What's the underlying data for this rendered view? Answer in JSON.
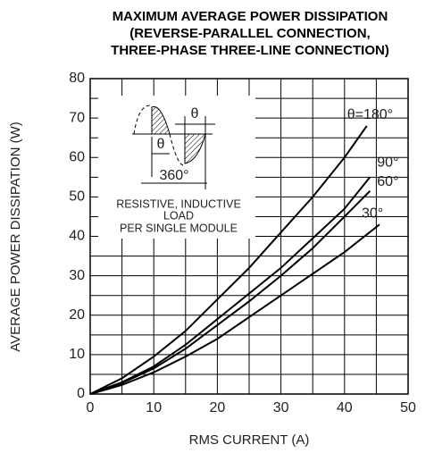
{
  "chart_data": {
    "type": "line",
    "title": [
      "MAXIMUM AVERAGE POWER DISSIPATION",
      "(REVERSE-PARALLEL CONNECTION,",
      "THREE-PHASE THREE-LINE CONNECTION)"
    ],
    "x_label": "RMS CURRENT (A)",
    "y_label": "AVERAGE POWER DISSIPATION (W)",
    "xlim": [
      0,
      50
    ],
    "xticks": [
      0,
      10,
      20,
      30,
      40,
      50
    ],
    "ylim": [
      0,
      80
    ],
    "yticks": [
      0,
      10,
      20,
      30,
      40,
      50,
      60,
      70,
      80
    ],
    "grid": true,
    "annotation": [
      "RESISTIVE, INDUCTIVE",
      "LOAD",
      "PER SINGLE MODULE"
    ],
    "waveform_labels": [
      "θ",
      "θ",
      "360°"
    ],
    "series": [
      {
        "name": "θ=180°",
        "color": "#000000",
        "x": [
          0,
          5,
          10,
          15,
          20,
          25,
          30,
          35,
          40,
          43.5
        ],
        "values": [
          0,
          4,
          9.5,
          16,
          24,
          32,
          41,
          50,
          60,
          68
        ]
      },
      {
        "name": "90°",
        "color": "#000000",
        "x": [
          0,
          5,
          10,
          15,
          20,
          25,
          30,
          35,
          40,
          44
        ],
        "values": [
          0,
          3,
          7,
          12.5,
          19,
          25.5,
          32,
          39.5,
          47,
          55
        ]
      },
      {
        "name": "60°",
        "color": "#000000",
        "x": [
          0,
          5,
          10,
          15,
          20,
          25,
          30,
          35,
          40,
          44
        ],
        "values": [
          0,
          2.8,
          6.5,
          11.5,
          17.5,
          23.5,
          30,
          37,
          45,
          51.5
        ]
      },
      {
        "name": "30°",
        "color": "#000000",
        "x": [
          0,
          5,
          10,
          15,
          20,
          25,
          30,
          35,
          40,
          45.5
        ],
        "values": [
          0,
          2.3,
          5.5,
          9.5,
          14,
          19.5,
          25,
          30.5,
          36,
          43
        ]
      }
    ]
  }
}
